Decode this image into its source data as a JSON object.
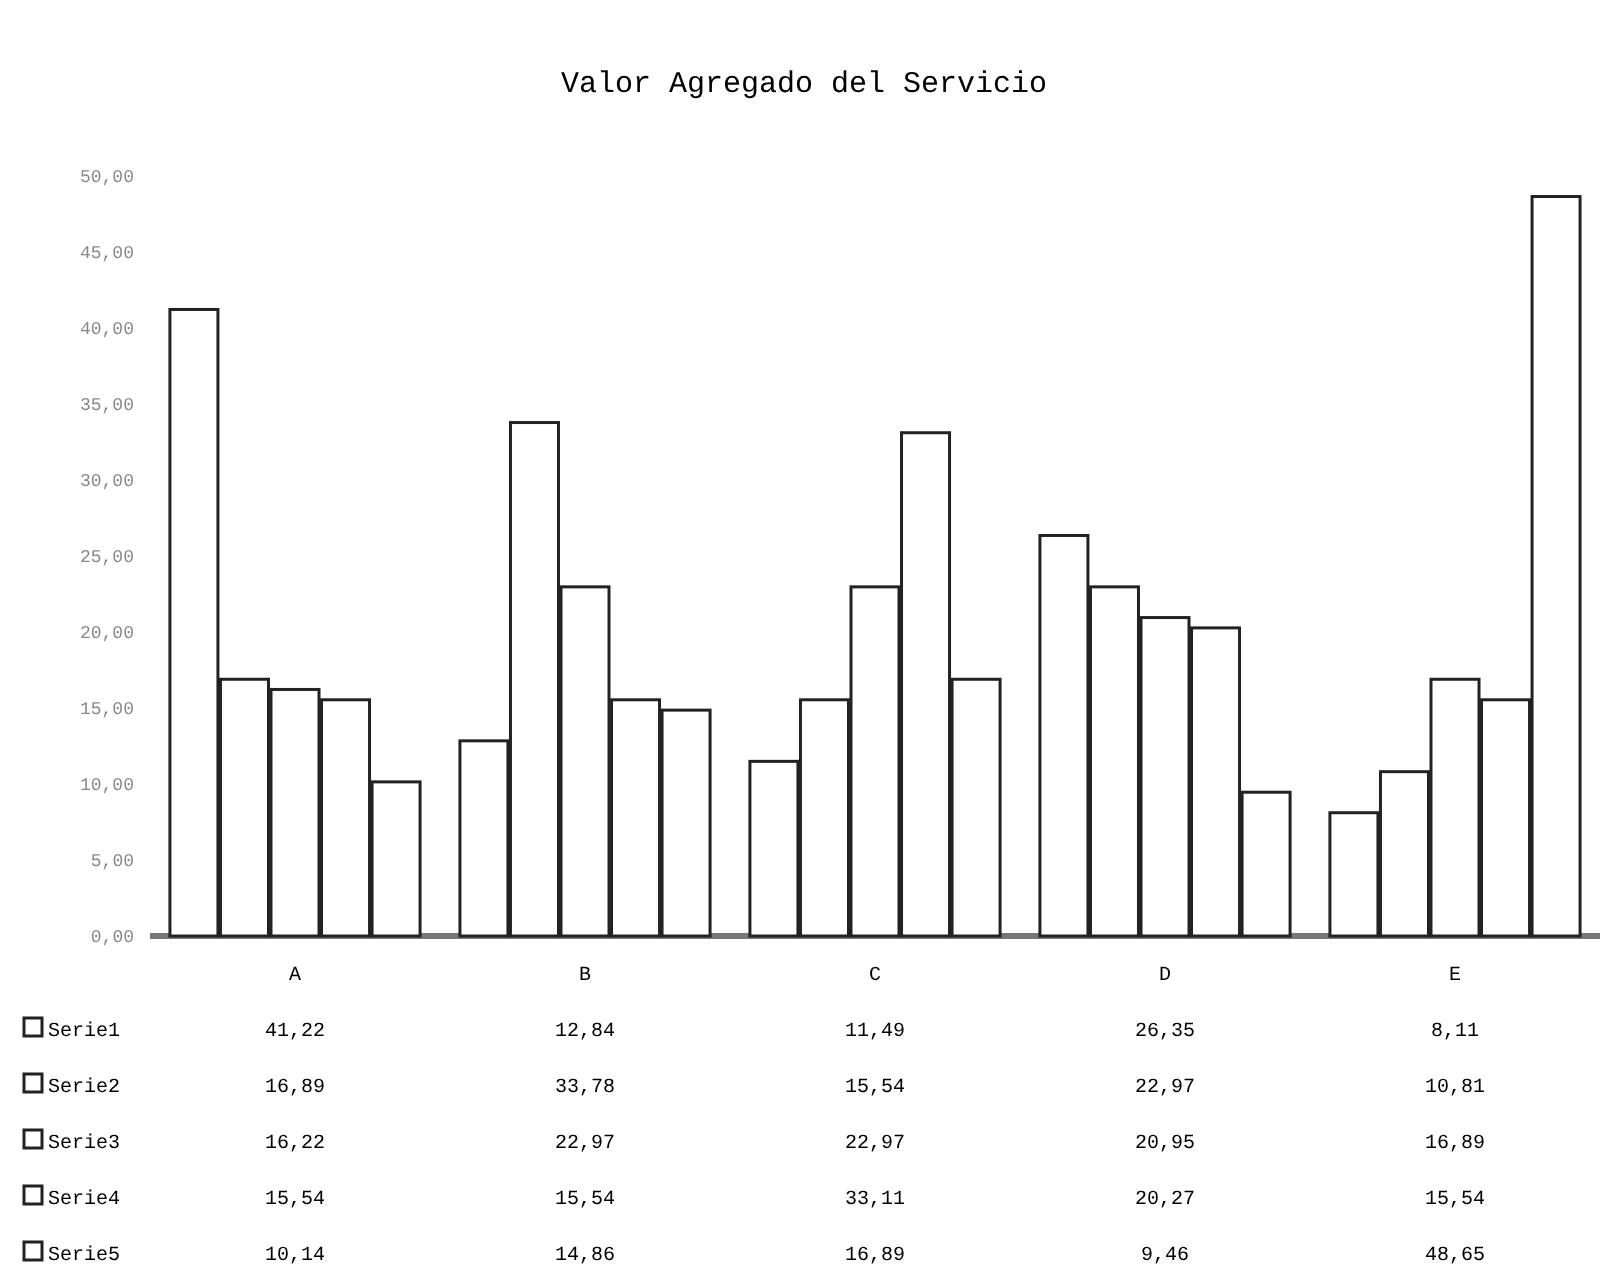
{
  "chart_data": {
    "type": "bar",
    "title": "Valor Agregado del Servicio",
    "categories": [
      "A",
      "B",
      "C",
      "D",
      "E"
    ],
    "series": [
      {
        "name": "Serie1",
        "color": "#ffffff",
        "values": [
          41.22,
          12.84,
          11.49,
          26.35,
          8.11
        ],
        "value_labels": [
          "41,22",
          "12,84",
          "11,49",
          "26,35",
          "8,11"
        ]
      },
      {
        "name": "Serie2",
        "color": "#ffffff",
        "values": [
          16.89,
          33.78,
          15.54,
          22.97,
          10.81
        ],
        "value_labels": [
          "16,89",
          "33,78",
          "15,54",
          "22,97",
          "10,81"
        ]
      },
      {
        "name": "Serie3",
        "color": "#ffffff",
        "values": [
          16.22,
          22.97,
          22.97,
          20.95,
          16.89
        ],
        "value_labels": [
          "16,22",
          "22,97",
          "22,97",
          "20,95",
          "16,89"
        ]
      },
      {
        "name": "Serie4",
        "color": "#ffffff",
        "values": [
          15.54,
          15.54,
          33.11,
          20.27,
          15.54
        ],
        "value_labels": [
          "15,54",
          "15,54",
          "33,11",
          "20,27",
          "15,54"
        ]
      },
      {
        "name": "Serie5",
        "color": "#ffffff",
        "values": [
          10.14,
          14.86,
          16.89,
          9.46,
          48.65
        ],
        "value_labels": [
          "10,14",
          "14,86",
          "16,89",
          "9,46",
          "48,65"
        ]
      }
    ],
    "ylim": [
      0,
      50
    ],
    "yticks": [
      {
        "value": 0,
        "label": "0,00"
      },
      {
        "value": 5,
        "label": "5,00"
      },
      {
        "value": 10,
        "label": "10,00"
      },
      {
        "value": 15,
        "label": "15,00"
      },
      {
        "value": 20,
        "label": "20,00"
      },
      {
        "value": 25,
        "label": "25,00"
      },
      {
        "value": 30,
        "label": "30,00"
      },
      {
        "value": 35,
        "label": "35,00"
      },
      {
        "value": 40,
        "label": "40,00"
      },
      {
        "value": 45,
        "label": "45,00"
      },
      {
        "value": 50,
        "label": "50,00"
      }
    ],
    "legend": "bottom"
  }
}
